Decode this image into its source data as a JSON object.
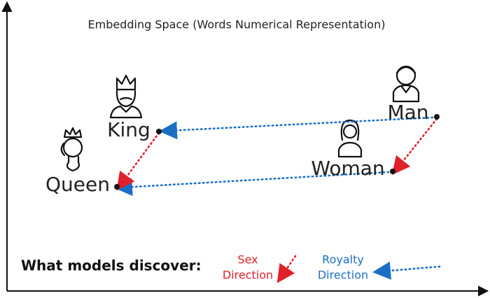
{
  "title": "Embedding Space (Words Numerical Representation)",
  "nodes": [
    {
      "label": "King"
    },
    {
      "label": "Queen"
    },
    {
      "label": "Man"
    },
    {
      "label": "Woman"
    }
  ],
  "legend": {
    "heading": "What models discover:",
    "items": [
      {
        "lines": [
          "Sex",
          "Direction"
        ]
      },
      {
        "lines": [
          "Royalty",
          "Direction"
        ]
      }
    ]
  }
}
